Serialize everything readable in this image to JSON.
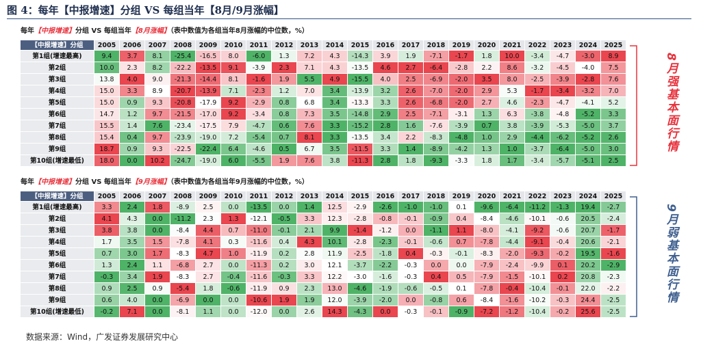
{
  "header": {
    "title": "图 4：每年【中报增速】分组 VS 每组当年【8月/9月涨幅】"
  },
  "tables": [
    {
      "subtitle": [
        {
          "text": "每年"
        },
        {
          "text": "【中报增速】",
          "highlight": true
        },
        {
          "text": "分组 VS 每组当年"
        },
        {
          "text": "【8月涨幅】",
          "highlight": true
        },
        {
          "text": "（表中数值为各组当年8月涨幅的中位数，%）"
        }
      ],
      "corner": "【中报增速】分组",
      "years": [
        2005,
        2006,
        2007,
        2008,
        2009,
        2010,
        2011,
        2012,
        2013,
        2014,
        2015,
        2016,
        2017,
        2018,
        2019,
        2020,
        2021,
        2022,
        2023,
        2024,
        2025
      ],
      "rows": [
        {
          "label": "第1组(增速最高)",
          "cells": [
            "9.4",
            "3.7",
            "8.1",
            "-25.4",
            "-16.5",
            "8.0",
            "-6.0",
            "1.3",
            "7.2",
            "4.3",
            "-14.3",
            "3.9",
            "1.9",
            "-7.1",
            "-1.7",
            "1.8",
            "10.0",
            "-3.4",
            "-4.7",
            "-3.0",
            "8.9"
          ]
        },
        {
          "label": "第2组",
          "cells": [
            "10.0",
            "2.3",
            "8.2",
            "-22.2",
            "-13.5",
            "9.1",
            "-3.9",
            "2.3",
            "7.1",
            "4.3",
            "-13.5",
            "4.6",
            "2.7",
            "-6.4",
            "-2.8",
            "2.2",
            "8.6",
            "-3.2",
            "-4.5",
            "-4.0",
            "7.5"
          ]
        },
        {
          "label": "第3组",
          "cells": [
            "13.8",
            "4.0",
            "9.0",
            "-21.3",
            "-14.4",
            "8.1",
            "-1.6",
            "1.9",
            "5.5",
            "4.9",
            "-15.5",
            "4.0",
            "2.5",
            "-6.9",
            "-2.0",
            "3.5",
            "8.0",
            "-2.5",
            "-3.9",
            "-2.8",
            "7.6"
          ]
        },
        {
          "label": "第4组",
          "cells": [
            "15.0",
            "3.3",
            "8.9",
            "-20.7",
            "-13.9",
            "7.1",
            "-2.3",
            "1.2",
            "7.0",
            "3.4",
            "-13.9",
            "3.2",
            "2.6",
            "-7.0",
            "-2.0",
            "2.9",
            "5.3",
            "-1.7",
            "-3.4",
            "-3.2",
            "7.0"
          ]
        },
        {
          "label": "第5组",
          "cells": [
            "15.0",
            "0.9",
            "9.3",
            "-20.8",
            "-17.9",
            "9.2",
            "-2.9",
            "0.8",
            "6.8",
            "3.4",
            "-13.3",
            "3.3",
            "2.6",
            "-6.8",
            "-2.0",
            "2.7",
            "4.6",
            "-2.3",
            "-4.7",
            "-4.1",
            "5.2"
          ]
        },
        {
          "label": "第6组",
          "cells": [
            "14.7",
            "1.2",
            "9.7",
            "-21.5",
            "-17.0",
            "9.2",
            "-3.4",
            "0.8",
            "7.3",
            "3.5",
            "-14.8",
            "2.9",
            "2.5",
            "-7.1",
            "-3.1",
            "1.3",
            "6.3",
            "-3.8",
            "-4.8",
            "-5.2",
            "3.3"
          ]
        },
        {
          "label": "第7组",
          "cells": [
            "15.5",
            "1.4",
            "7.6",
            "-23.4",
            "-17.5",
            "7.9",
            "-4.7",
            "0.6",
            "7.6",
            "3.3",
            "-15.2",
            "2.8",
            "1.6",
            "-7.6",
            "-3.9",
            "0.7",
            "3.8",
            "-3.9",
            "-5.3",
            "-5.0",
            "3.7"
          ]
        },
        {
          "label": "第8组",
          "cells": [
            "15.4",
            "0.4",
            "9.7",
            "-23.9",
            "-19.0",
            "7.2",
            "-5.4",
            "0.7",
            "8.1",
            "3.3",
            "-13.5",
            "3.4",
            "2.2",
            "-8.3",
            "-4.8",
            "1.0",
            "2.9",
            "-4.4",
            "-6.2",
            "-5.2",
            "2.6"
          ]
        },
        {
          "label": "第9组",
          "cells": [
            "18.7",
            "0.9",
            "9.3",
            "-22.5",
            "-22.4",
            "6.4",
            "-4.6",
            "0.5",
            "6.7",
            "3.5",
            "-11.5",
            "3.3",
            "1.4",
            "-8.9",
            "-4.2",
            "1.3",
            "1.0",
            "-3.7",
            "-6.4",
            "-5.0",
            "3.0"
          ]
        },
        {
          "label": "第10组(增速最低)",
          "cells": [
            "18.0",
            "0.0",
            "10.2",
            "-24.7",
            "-19.0",
            "6.0",
            "-5.5",
            "1.9",
            "7.6",
            "3.8",
            "-11.3",
            "2.8",
            "1.8",
            "-9.3",
            "-3.3",
            "1.8",
            "1.7",
            "-3.4",
            "-5.7",
            "-5.1",
            "2.5"
          ]
        }
      ],
      "side_label": "8月强基本面行情",
      "side_color": "#e8323c"
    },
    {
      "subtitle": [
        {
          "text": "每年"
        },
        {
          "text": "【中报增速】",
          "highlight": true
        },
        {
          "text": "分组 VS 每组当年"
        },
        {
          "text": "【9月涨幅】",
          "highlight": true
        },
        {
          "text": "（表中数值为各组当年9月涨幅的中位数，%）"
        }
      ],
      "corner": "【中报增速】分组",
      "years": [
        2005,
        2006,
        2007,
        2008,
        2009,
        2010,
        2011,
        2012,
        2013,
        2014,
        2015,
        2016,
        2017,
        2018,
        2019,
        2020,
        2021,
        2022,
        2023,
        2024,
        2025
      ],
      "rows": [
        {
          "label": "第1组(增速最高)",
          "cells": [
            "3.3",
            "2.4",
            "1.8",
            "-8.9",
            "2.5",
            "0.0",
            "-13.5",
            "0.0",
            "1.4",
            "12.5",
            "-2.9",
            "-2.6",
            "-1.0",
            "-1.0",
            "0.1",
            "-9.6",
            "-6.4",
            "-11.2",
            "-1.3",
            "19.4",
            "-2.7"
          ]
        },
        {
          "label": "第2组",
          "cells": [
            "4.1",
            "4.3",
            "0.0",
            "-11.2",
            "2.3",
            "1.3",
            "-12.1",
            "-0.5",
            "3.3",
            "12.3",
            "-2.8",
            "-0.8",
            "-0.1",
            "-0.9",
            "0.4",
            "-8.4",
            "-4.6",
            "-10.1",
            "-0.6",
            "20.5",
            "-2.4"
          ]
        },
        {
          "label": "第3组",
          "cells": [
            "3.8",
            "3.8",
            "0.0",
            "-8.4",
            "4.4",
            "0.7",
            "-11.0",
            "-0.1",
            "2.1",
            "9.9",
            "-1.4",
            "-1.2",
            "0.0",
            "-1.1",
            "1.1",
            "-8.0",
            "-4.1",
            "-9.2",
            "-0.6",
            "20.7",
            "-1.7"
          ]
        },
        {
          "label": "第4组",
          "cells": [
            "1.7",
            "3.5",
            "1.5",
            "-7.8",
            "4.1",
            "0.3",
            "-11.6",
            "0.4",
            "4.3",
            "10.1",
            "-2.8",
            "-2.3",
            "-0.1",
            "-0.6",
            "0.7",
            "-7.8",
            "-4.4",
            "-9.1",
            "-0.4",
            "20.6",
            "-2.1"
          ]
        },
        {
          "label": "第5组",
          "cells": [
            "0.7",
            "3.0",
            "1.7",
            "-8.3",
            "4.7",
            "1.0",
            "-11.9",
            "0.2",
            "2.8",
            "11.9",
            "-2.5",
            "-1.8",
            "0.4",
            "-0.3",
            "-0.1",
            "-8.3",
            "-2.0",
            "-9.3",
            "-0.2",
            "19.5",
            "-1.6"
          ]
        },
        {
          "label": "第6组",
          "cells": [
            "1.3",
            "2.4",
            "1.1",
            "-6.8",
            "2.7",
            "0.0",
            "-11.3",
            "0.2",
            "3.0",
            "12.1",
            "-3.7",
            "-2.2",
            "-0.3",
            "0.0",
            "0.0",
            "-7.9",
            "-2.4",
            "-9.9",
            "0.1",
            "20.2",
            "-2.9"
          ]
        },
        {
          "label": "第7组",
          "cells": [
            "-0.3",
            "3.4",
            "1.9",
            "-8.3",
            "2.7",
            "-0.4",
            "-11.6",
            "-0.3",
            "3.3",
            "12.2",
            "-3.0",
            "-1.6",
            "-0.3",
            "0.4",
            "0.5",
            "-7.9",
            "-1.5",
            "-10.1",
            "0.2",
            "20.8",
            "-2.3"
          ]
        },
        {
          "label": "第8组",
          "cells": [
            "0.9",
            "2.5",
            "0.9",
            "-5.4",
            "1.8",
            "-0.6",
            "-11.9",
            "0.9",
            "2.3",
            "13.0",
            "-4.6",
            "-1.9",
            "-0.6",
            "-0.5",
            "0.1",
            "-7.8",
            "-0.4",
            "-10.4",
            "-0.1",
            "22.0",
            "-2.2"
          ]
        },
        {
          "label": "第9组",
          "cells": [
            "0.6",
            "4.0",
            "0.0",
            "-6.9",
            "0.0",
            "0.0",
            "-10.6",
            "1.9",
            "1.9",
            "12.0",
            "-3.9",
            "-2.0",
            "0.0",
            "-0.8",
            "0.6",
            "-8.4",
            "-1.6",
            "-10.2",
            "-0.3",
            "24.4",
            "-2.5"
          ]
        },
        {
          "label": "第10组(增速最低)",
          "cells": [
            "-0.2",
            "7.1",
            "0.0",
            "-8.1",
            "1.1",
            "0.0",
            "-12.0",
            "0.0",
            "2.6",
            "14.3",
            "-4.3",
            "0.0",
            "-0.3",
            "-0.1",
            "-0.9",
            "-7.2",
            "-1.2",
            "-10.4",
            "-0.2",
            "25.6",
            "-2.5"
          ]
        }
      ],
      "side_label": "9月弱基本面行情",
      "side_color": "#3f5f8f"
    }
  ],
  "source": "数据来源：Wind，广发证券发展研究中心"
}
